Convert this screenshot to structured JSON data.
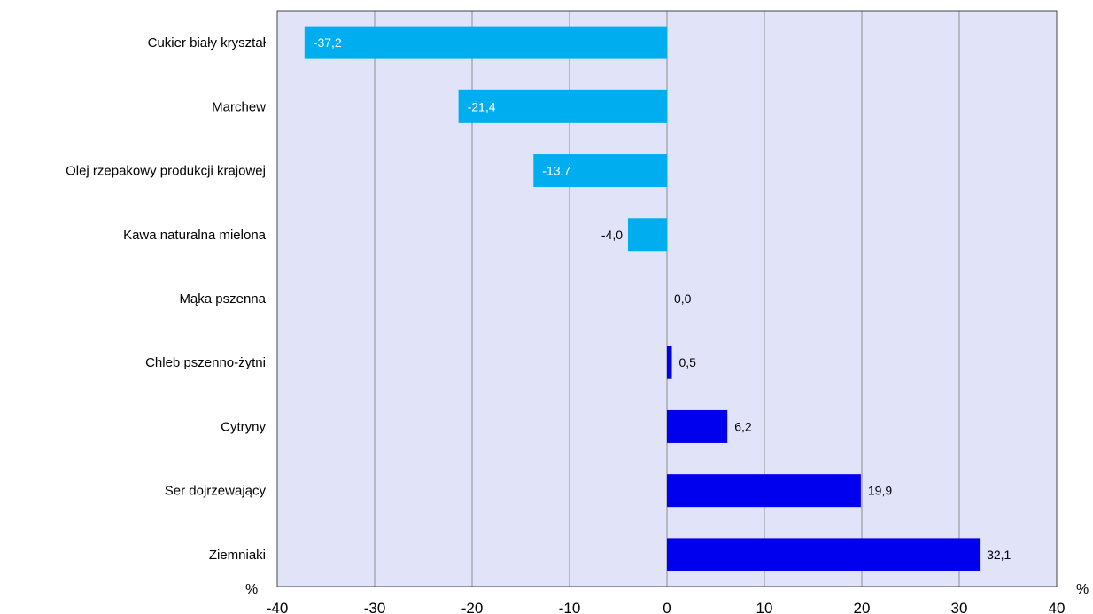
{
  "chart_data": {
    "type": "bar",
    "orientation": "horizontal",
    "categories": [
      "Cukier biały kryształ",
      "Marchew",
      "Olej rzepakowy produkcji krajowej",
      "Kawa naturalna mielona",
      "Mąka pszenna",
      "Chleb pszenno-żytni",
      "Cytryny",
      "Ser dojrzewający",
      "Ziemniaki"
    ],
    "values": [
      -37.2,
      -21.4,
      -13.7,
      -4.0,
      0.0,
      0.5,
      6.2,
      19.9,
      32.1
    ],
    "data_labels": [
      "-37,2",
      "-21,4",
      "-13,7",
      "-4,0",
      "0,0",
      "0,5",
      "6,2",
      "19,9",
      "32,1"
    ],
    "xlim": [
      -40,
      40
    ],
    "x_ticks": [
      -40,
      -30,
      -20,
      -10,
      0,
      10,
      20,
      30,
      40
    ],
    "x_tick_labels": [
      "-40",
      "-30",
      "-20",
      "-10",
      "0",
      "10",
      "20",
      "30",
      "40"
    ],
    "x_unit_label": "%",
    "x_unit_label_right": "%",
    "grid": "vertical",
    "colors": {
      "negative": "#00AEEF",
      "positive": "#0000EE",
      "plot_background": "#E1E4F8",
      "gridline": "#8C8C8C",
      "frame": "#444444"
    }
  }
}
